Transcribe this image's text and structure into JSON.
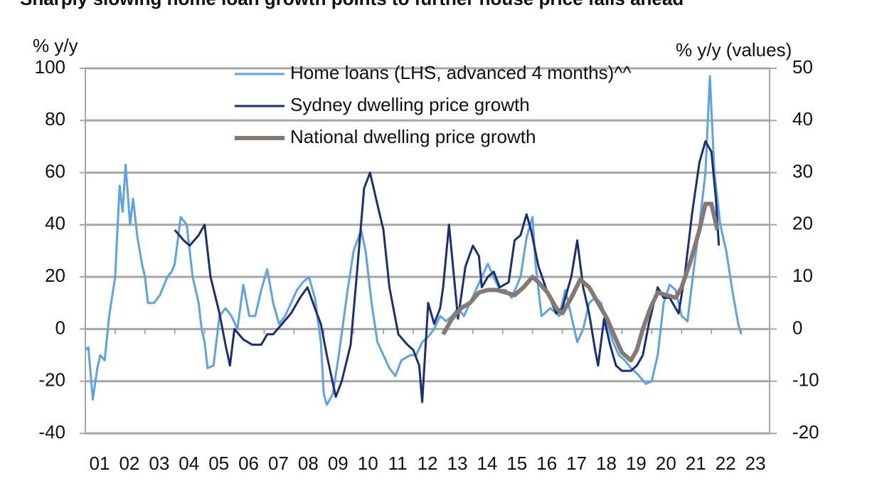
{
  "chart_data": {
    "type": "line",
    "title": "Sharply slowing home loan growth points to further house price falls ahead",
    "y_label": "% y/y",
    "y2_label": "% y/y (values)",
    "xlim": [
      2001,
      2024
    ],
    "xticks": [
      {
        "value": 2001,
        "label": "01"
      },
      {
        "value": 2002,
        "label": "02"
      },
      {
        "value": 2003,
        "label": "03"
      },
      {
        "value": 2004,
        "label": "04"
      },
      {
        "value": 2005,
        "label": "05"
      },
      {
        "value": 2006,
        "label": "06"
      },
      {
        "value": 2007,
        "label": "07"
      },
      {
        "value": 2008,
        "label": "08"
      },
      {
        "value": 2009,
        "label": "09"
      },
      {
        "value": 2010,
        "label": "10"
      },
      {
        "value": 2011,
        "label": "11"
      },
      {
        "value": 2012,
        "label": "12"
      },
      {
        "value": 2013,
        "label": "13"
      },
      {
        "value": 2014,
        "label": "14"
      },
      {
        "value": 2015,
        "label": "15"
      },
      {
        "value": 2016,
        "label": "16"
      },
      {
        "value": 2017,
        "label": "17"
      },
      {
        "value": 2018,
        "label": "18"
      },
      {
        "value": 2019,
        "label": "19"
      },
      {
        "value": 2020,
        "label": "20"
      },
      {
        "value": 2021,
        "label": "21"
      },
      {
        "value": 2022,
        "label": "22"
      },
      {
        "value": 2023,
        "label": "23"
      }
    ],
    "ylim": [
      -40,
      100
    ],
    "yticks": [
      -40,
      -20,
      0,
      20,
      40,
      60,
      80,
      100
    ],
    "y2lim": [
      -20,
      50
    ],
    "y2ticks": [
      -20,
      -10,
      0,
      10,
      20,
      30,
      40,
      50
    ],
    "grid": true,
    "legend": "top",
    "series": [
      {
        "name": "Home loans (LHS, advanced 4 months)^^",
        "color": "#5ba3e6",
        "axis": "y",
        "x": [
          2001.0,
          2001.1,
          2001.25,
          2001.4,
          2001.5,
          2001.65,
          2001.8,
          2002.0,
          2002.15,
          2002.25,
          2002.35,
          2002.5,
          2002.6,
          2002.75,
          2002.9,
          2003.0,
          2003.1,
          2003.3,
          2003.5,
          2003.75,
          2003.9,
          2004.0,
          2004.2,
          2004.4,
          2004.6,
          2004.8,
          2004.9,
          2005.0,
          2005.1,
          2005.3,
          2005.5,
          2005.7,
          2005.9,
          2006.1,
          2006.3,
          2006.5,
          2006.7,
          2006.9,
          2007.1,
          2007.3,
          2007.5,
          2007.7,
          2007.9,
          2008.1,
          2008.3,
          2008.5,
          2008.7,
          2008.9,
          2009.0,
          2009.1,
          2009.3,
          2009.5,
          2009.8,
          2010.0,
          2010.25,
          2010.4,
          2010.6,
          2010.8,
          2011.0,
          2011.2,
          2011.4,
          2011.6,
          2011.9,
          2012.1,
          2012.3,
          2012.5,
          2012.7,
          2012.9,
          2013.1,
          2013.3,
          2013.5,
          2013.7,
          2013.9,
          2014.1,
          2014.3,
          2014.5,
          2014.7,
          2014.9,
          2015.1,
          2015.3,
          2015.6,
          2015.8,
          2016.0,
          2016.1,
          2016.3,
          2016.6,
          2016.9,
          2017.1,
          2017.3,
          2017.5,
          2017.7,
          2017.9,
          2018.1,
          2018.3,
          2018.5,
          2018.7,
          2018.9,
          2019.1,
          2019.3,
          2019.5,
          2019.8,
          2020.0,
          2020.2,
          2020.4,
          2020.6,
          2020.8,
          2021.0,
          2021.2,
          2021.4,
          2021.6,
          2021.8,
          2021.95,
          2022.1,
          2022.3,
          2022.5,
          2022.7,
          2022.9,
          2023.0
        ],
        "values": [
          -8,
          -7,
          -27,
          -15,
          -10,
          -12,
          5,
          20,
          55,
          45,
          63,
          40,
          50,
          35,
          25,
          20,
          10,
          10,
          13,
          20,
          22,
          25,
          43,
          40,
          20,
          10,
          0,
          -5,
          -15,
          -14,
          5,
          8,
          5,
          0,
          17,
          5,
          5,
          15,
          23,
          10,
          2,
          5,
          10,
          15,
          18,
          20,
          12,
          -5,
          -25,
          -29,
          -25,
          -10,
          15,
          30,
          38,
          30,
          10,
          -5,
          -10,
          -15,
          -18,
          -12,
          -10,
          -10,
          -5,
          -3,
          0,
          5,
          3,
          5,
          8,
          5,
          10,
          15,
          20,
          25,
          20,
          15,
          15,
          12,
          20,
          35,
          43,
          25,
          5,
          8,
          5,
          15,
          5,
          -5,
          0,
          10,
          12,
          10,
          2,
          -5,
          -10,
          -12,
          -15,
          -17,
          -21,
          -20,
          -10,
          10,
          17,
          15,
          5,
          3,
          22,
          40,
          60,
          97,
          60,
          40,
          30,
          15,
          2,
          -2
        ]
      },
      {
        "name": "Sydney dwelling price growth",
        "color": "#1a2f7a",
        "axis": "y2",
        "x": [
          2004.0,
          2004.3,
          2004.5,
          2004.8,
          2005.0,
          2005.2,
          2005.5,
          2005.7,
          2005.85,
          2006.0,
          2006.3,
          2006.6,
          2006.9,
          2007.1,
          2007.3,
          2007.6,
          2007.9,
          2008.2,
          2008.45,
          2008.7,
          2008.9,
          2009.1,
          2009.4,
          2009.6,
          2009.9,
          2010.1,
          2010.35,
          2010.55,
          2010.75,
          2011.0,
          2011.2,
          2011.5,
          2011.8,
          2012.0,
          2012.2,
          2012.3,
          2012.5,
          2012.7,
          2012.9,
          2013.0,
          2013.2,
          2013.5,
          2013.75,
          2014.0,
          2014.2,
          2014.3,
          2014.5,
          2014.7,
          2014.9,
          2015.2,
          2015.4,
          2015.6,
          2015.8,
          2015.95,
          2016.2,
          2016.5,
          2016.8,
          2017.0,
          2017.3,
          2017.5,
          2017.7,
          2017.9,
          2018.1,
          2018.2,
          2018.4,
          2018.6,
          2018.8,
          2019.0,
          2019.3,
          2019.5,
          2019.7,
          2019.9,
          2020.2,
          2020.4,
          2020.6,
          2020.9,
          2021.1,
          2021.35,
          2021.6,
          2021.8,
          2022.0,
          2022.15,
          2022.25
        ],
        "values": [
          19,
          17,
          16,
          18,
          20,
          10,
          3,
          -3,
          -7,
          0,
          -2,
          -3,
          -3,
          -1,
          -1,
          1,
          3,
          6,
          8,
          4,
          1,
          -5,
          -13,
          -10,
          -3,
          10,
          27,
          30,
          25,
          19,
          8,
          -1,
          -3,
          -4,
          -7,
          -14,
          5,
          1,
          4,
          8,
          20,
          2,
          12,
          16,
          14,
          8,
          10,
          11,
          8,
          9,
          17,
          18,
          22,
          19,
          12,
          7,
          3,
          4,
          10,
          17,
          8,
          3,
          -4,
          -7,
          2,
          -3,
          -7,
          -8,
          -8,
          -7,
          -5,
          1,
          8,
          6,
          6,
          3,
          10,
          22,
          32,
          36,
          34,
          25,
          16
        ]
      },
      {
        "name": "National dwelling price growth",
        "color": "#847a73",
        "axis": "y2",
        "x": [
          2013.0,
          2013.3,
          2013.6,
          2013.9,
          2014.2,
          2014.5,
          2014.8,
          2015.1,
          2015.4,
          2015.7,
          2016.0,
          2016.2,
          2016.5,
          2016.8,
          2017.0,
          2017.3,
          2017.6,
          2017.9,
          2018.2,
          2018.5,
          2018.8,
          2019.0,
          2019.3,
          2019.5,
          2019.7,
          2019.95,
          2020.2,
          2020.5,
          2020.8,
          2021.0,
          2021.3,
          2021.6,
          2021.8,
          2022.0,
          2022.2
        ],
        "values": [
          -1,
          2,
          4,
          5,
          7,
          7.5,
          7.5,
          7,
          6.5,
          8,
          10,
          9,
          7,
          4,
          3,
          6,
          9.5,
          8,
          5,
          2,
          -2,
          -4.5,
          -6,
          -4,
          0,
          4,
          7,
          6.5,
          6,
          8,
          13,
          19,
          24,
          24,
          19
        ]
      }
    ]
  }
}
